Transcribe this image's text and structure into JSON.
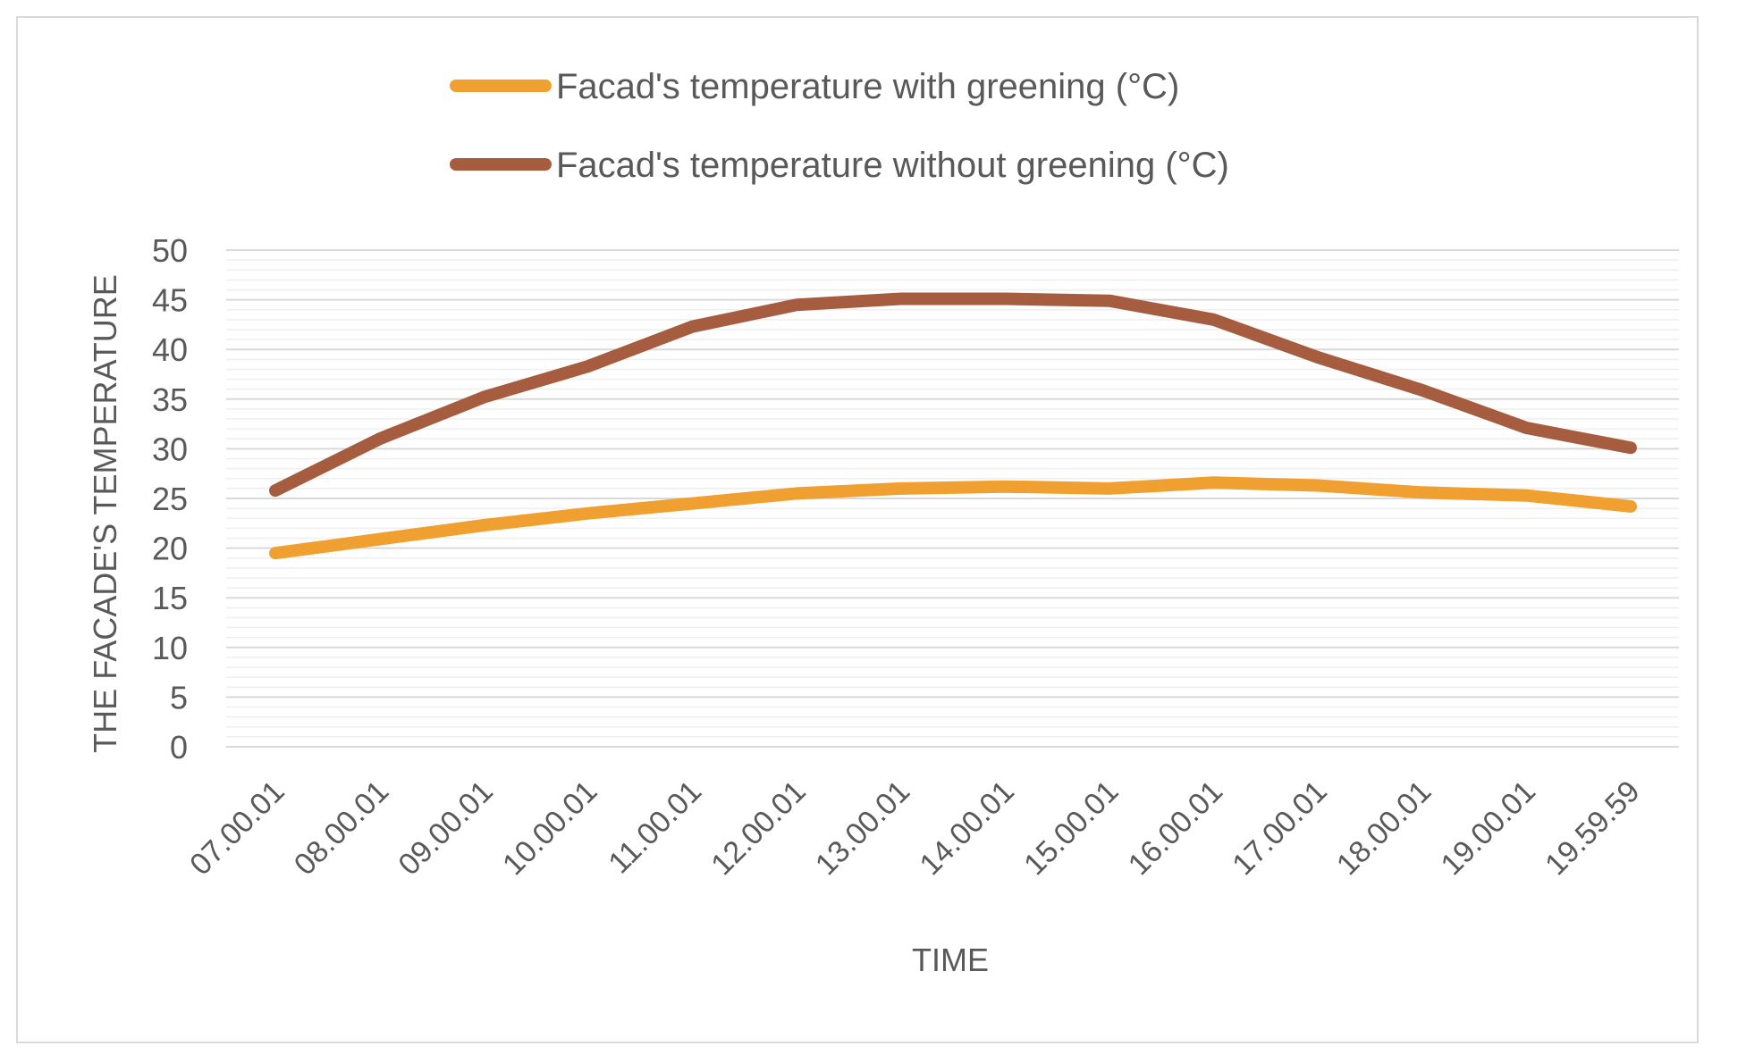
{
  "chart_data": {
    "type": "line",
    "title": "",
    "xlabel": "TIME",
    "ylabel": "THE FACADE'S TEMPERATURE",
    "ylim": [
      0,
      50
    ],
    "yticks": [
      0,
      5,
      10,
      15,
      20,
      25,
      30,
      35,
      40,
      45,
      50
    ],
    "categories": [
      "07.00.01",
      "08.00.01",
      "09.00.01",
      "10.00.01",
      "11.00.01",
      "12.00.01",
      "13.00.01",
      "14.00.01",
      "15.00.01",
      "16.00.01",
      "17.00.01",
      "18.00.01",
      "19.00.01",
      "19.59.59"
    ],
    "series": [
      {
        "name": "Facad's temperature with greening  (°C)",
        "color": "#f0a030",
        "values": [
          19.5,
          20.9,
          22.3,
          23.5,
          24.5,
          25.5,
          26.0,
          26.2,
          26.0,
          26.6,
          26.3,
          25.6,
          25.3,
          24.2
        ]
      },
      {
        "name": "Facad's temperature without greening  (°C)",
        "color": "#a65d3f",
        "values": [
          25.8,
          31.0,
          35.2,
          38.3,
          42.3,
          44.5,
          45.1,
          45.1,
          44.9,
          43.0,
          39.2,
          35.9,
          32.1,
          30.1
        ]
      }
    ],
    "legend_position": "top",
    "grid": true
  }
}
